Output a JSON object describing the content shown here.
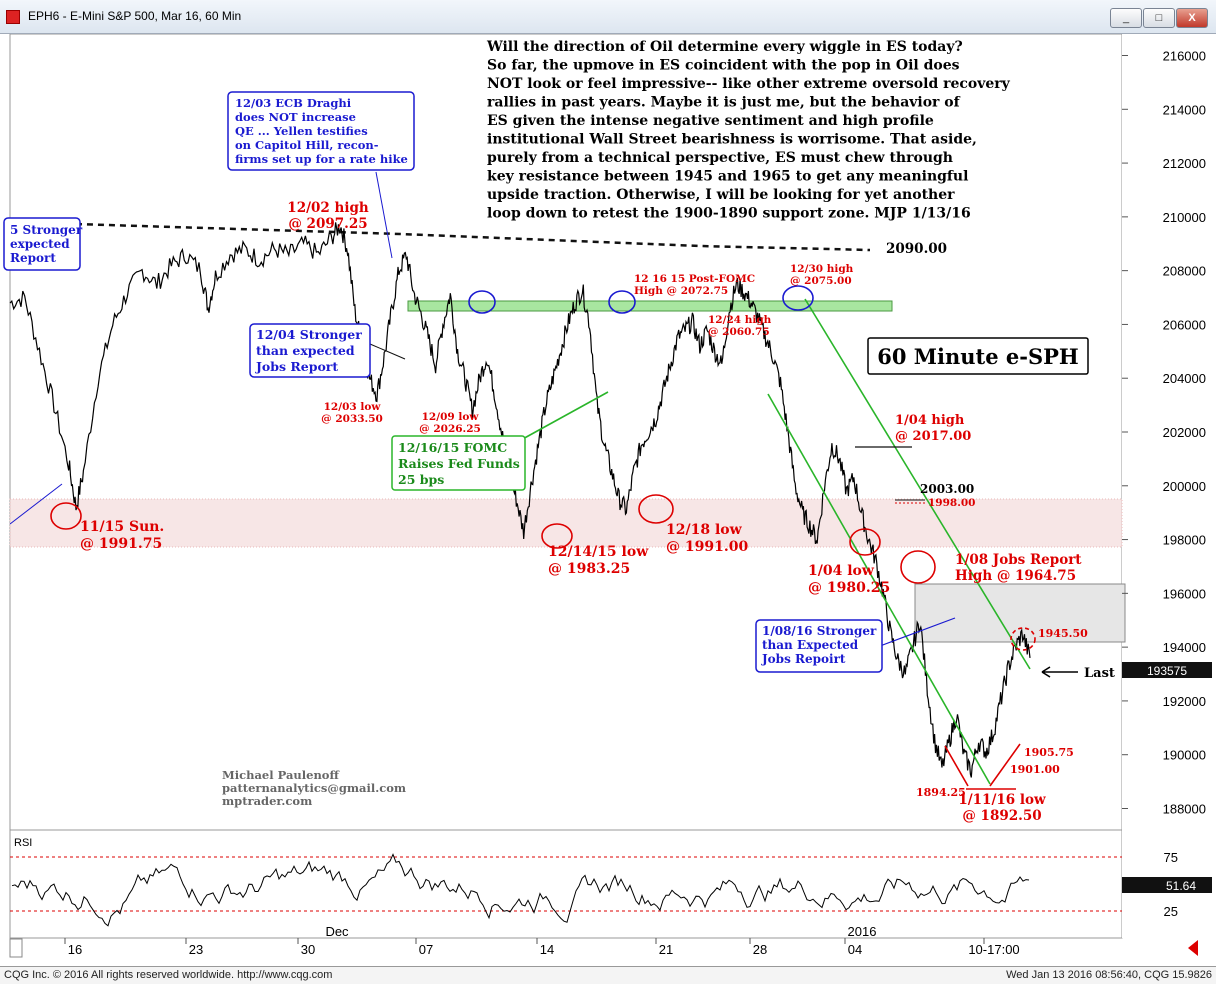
{
  "window": {
    "title": "EPH6 - E-Mini S&P 500, Mar 16, 60 Min",
    "minimize": "_",
    "maximize": "□",
    "close": "X"
  },
  "footer": {
    "copyright": "CQG Inc. © 2016 All rights reserved worldwide. http://www.cqg.com",
    "timestamp": "Wed Jan 13 2016 08:56:40, CQG 15.9826"
  },
  "commentary": [
    "Will the direction of Oil determine every wiggle in ES today?",
    "So far, the upmove in ES coincident with the pop in Oil does",
    "NOT look or feel impressive-- like other extreme oversold recovery",
    "rallies in past years. Maybe it is just me, but the behavior of",
    "ES given the intense negative sentiment and high profile",
    "institutional Wall Street bearishness is worrisome. That aside,",
    "purely from a technical perspective, ES must chew through",
    "key resistance between 1945 and 1965 to get any meaningful",
    "upside traction. Otherwise, I will be looking for yet another",
    "loop down to retest the 1900-1890 support zone. MJP 1/13/16"
  ],
  "chart_title": "60 Minute e-SPH",
  "credit": [
    "Michael Paulenoff",
    "patternanalytics@gmail.com",
    "mptrader.com"
  ],
  "boxes": {
    "ecb": [
      "12/03 ECB Draghi",
      "does NOT increase",
      "QE ... Yellen testifies",
      "on Capitol Hill, recon-",
      "firms set up for a rate hike"
    ],
    "jobs_1204": [
      "12/04 Stronger",
      "than expected",
      "Jobs Report"
    ],
    "jobs_left": [
      "5 Stronger",
      "expected",
      "Report"
    ],
    "fomc": [
      "12/16/15 FOMC",
      "Raises Fed Funds",
      "25 bps"
    ],
    "jobs_0108": [
      "1/08/16 Stronger",
      "than Expected",
      "Jobs Repoirt"
    ]
  },
  "labels": {
    "h1202": [
      "12/02 high",
      "@ 2097.25"
    ],
    "l1115": [
      "11/15 Sun.",
      "@ 1991.75"
    ],
    "l1203": [
      "12/03 low",
      "@ 2033.50"
    ],
    "l1209": [
      "12/09 low",
      "@ 2026.25"
    ],
    "l1214": [
      "12/14/15 low",
      "@ 1983.25"
    ],
    "l1218": [
      "12/18 low",
      "@ 1991.00"
    ],
    "h1216": [
      "12 16 15 Post-FOMC",
      "High @ 2072.75"
    ],
    "h1224": [
      "12/24 high",
      "@ 2060.75"
    ],
    "h1230": [
      "12/30 high",
      "@ 2075.00"
    ],
    "h0104": [
      "1/04 high",
      "@ 2017.00"
    ],
    "l0104": [
      "1/04 low",
      "@ 1980.25"
    ],
    "jr0108": [
      "1/08 Jobs Report",
      "High @ 1964.75"
    ],
    "l0111": [
      "1/11/16 low",
      "@ 1892.50"
    ],
    "v2090": "2090.00",
    "v2003": "2003.00",
    "v1998": "1998.00",
    "v1945": "1945.50",
    "v1905": "1905.75",
    "v1901": "1901.00",
    "v1894": "1894.25",
    "last": "Last"
  },
  "chart_data": {
    "type": "line",
    "title": "",
    "instrument": "EPH6 - E-Mini S&P 500, Mar 16, 60 Min",
    "ylim": [
      1872,
      2168
    ],
    "price_ticks": [
      188000,
      190000,
      192000,
      194000,
      196000,
      198000,
      200000,
      202000,
      204000,
      206000,
      208000,
      210000,
      212000,
      214000,
      216000
    ],
    "last_price": "193575",
    "x_ticks": [
      "16",
      "23",
      "30",
      "Dec",
      "07",
      "14",
      "21",
      "28",
      "2016",
      "04",
      "10-17:00"
    ],
    "series": [
      {
        "values": [
          [
            0,
            2068
          ],
          [
            2,
            2070
          ],
          [
            4,
            2050
          ],
          [
            6,
            2030
          ],
          [
            8,
            2008
          ],
          [
            9,
            1992
          ],
          [
            10,
            2005
          ],
          [
            12,
            2040
          ],
          [
            14,
            2060
          ],
          [
            16,
            2072
          ],
          [
            18,
            2080
          ],
          [
            20,
            2075
          ],
          [
            22,
            2082
          ],
          [
            24,
            2086
          ],
          [
            26,
            2080
          ],
          [
            27,
            2066
          ],
          [
            28,
            2078
          ],
          [
            30,
            2086
          ],
          [
            32,
            2088
          ],
          [
            34,
            2084
          ],
          [
            36,
            2088
          ],
          [
            38,
            2086
          ],
          [
            40,
            2090
          ],
          [
            42,
            2086
          ],
          [
            44,
            2093
          ],
          [
            45,
            2097
          ],
          [
            46,
            2088
          ],
          [
            47,
            2065
          ],
          [
            48,
            2052
          ],
          [
            49,
            2040
          ],
          [
            50,
            2034
          ],
          [
            51,
            2048
          ],
          [
            52,
            2065
          ],
          [
            53,
            2080
          ],
          [
            54,
            2086
          ],
          [
            55,
            2072
          ],
          [
            56,
            2064
          ],
          [
            57,
            2055
          ],
          [
            58,
            2045
          ],
          [
            59,
            2060
          ],
          [
            60,
            2071
          ],
          [
            61,
            2050
          ],
          [
            62,
            2040
          ],
          [
            63,
            2028
          ],
          [
            64,
            2040
          ],
          [
            65,
            2048
          ],
          [
            66,
            2035
          ],
          [
            67,
            2020
          ],
          [
            68,
            2005
          ],
          [
            69,
            1995
          ],
          [
            70,
            1983
          ],
          [
            71,
            2000
          ],
          [
            72,
            2015
          ],
          [
            73,
            2030
          ],
          [
            74,
            2040
          ],
          [
            75,
            2050
          ],
          [
            76,
            2060
          ],
          [
            77,
            2068
          ],
          [
            78,
            2073
          ],
          [
            79,
            2060
          ],
          [
            80,
            2030
          ],
          [
            81,
            2015
          ],
          [
            82,
            2005
          ],
          [
            83,
            1995
          ],
          [
            84,
            1991
          ],
          [
            85,
            2005
          ],
          [
            86,
            2015
          ],
          [
            87,
            2020
          ],
          [
            88,
            2025
          ],
          [
            89,
            2035
          ],
          [
            90,
            2045
          ],
          [
            91,
            2055
          ],
          [
            92,
            2058
          ],
          [
            93,
            2061
          ],
          [
            94,
            2052
          ],
          [
            95,
            2058
          ],
          [
            96,
            2050
          ],
          [
            97,
            2045
          ],
          [
            98,
            2065
          ],
          [
            99,
            2075
          ],
          [
            100,
            2072
          ],
          [
            101,
            2068
          ],
          [
            102,
            2062
          ],
          [
            103,
            2055
          ],
          [
            104,
            2048
          ],
          [
            105,
            2038
          ],
          [
            106,
            2020
          ],
          [
            107,
            2000
          ],
          [
            108,
            1990
          ],
          [
            109,
            1985
          ],
          [
            110,
            1980
          ],
          [
            111,
            2000
          ],
          [
            112,
            2015
          ],
          [
            113,
            2010
          ],
          [
            114,
            1998
          ],
          [
            115,
            2003
          ],
          [
            116,
            1990
          ],
          [
            117,
            1980
          ],
          [
            118,
            1972
          ],
          [
            119,
            1960
          ],
          [
            120,
            1945
          ],
          [
            121,
            1935
          ],
          [
            122,
            1930
          ],
          [
            123,
            1940
          ],
          [
            124,
            1950
          ],
          [
            125,
            1925
          ],
          [
            126,
            1905
          ],
          [
            127,
            1895
          ],
          [
            128,
            1905
          ],
          [
            129,
            1915
          ],
          [
            130,
            1900
          ],
          [
            131,
            1894
          ],
          [
            132,
            1905
          ],
          [
            133,
            1901
          ],
          [
            134,
            1908
          ],
          [
            135,
            1920
          ],
          [
            136,
            1932
          ],
          [
            137,
            1940
          ],
          [
            138,
            1945
          ],
          [
            139,
            1936
          ]
        ]
      }
    ],
    "rsi": {
      "label": "RSI",
      "levels": [
        75,
        25
      ],
      "last": "51.64"
    }
  }
}
